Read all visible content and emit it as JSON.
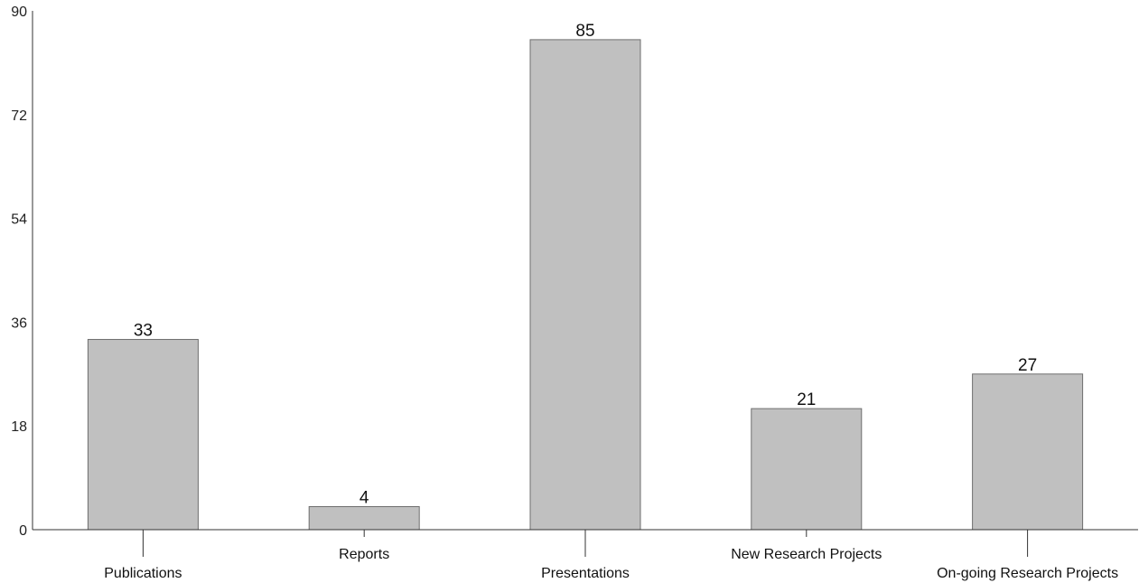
{
  "chart_data": {
    "type": "bar",
    "categories": [
      "Publications",
      "Reports",
      "Presentations",
      "New Research Projects",
      "On-going Research Projects"
    ],
    "values": [
      33,
      4,
      85,
      21,
      27
    ],
    "data_labels": [
      "33",
      "4",
      "85",
      "21",
      "27"
    ],
    "y_ticks": [
      0,
      18,
      36,
      54,
      72,
      90
    ],
    "ylim": [
      0,
      90
    ],
    "grid": false,
    "legend": "none",
    "bar_color": "#c0c0c0",
    "bar_edge_color": "#6e6e6e",
    "axis_color": "#333333"
  }
}
